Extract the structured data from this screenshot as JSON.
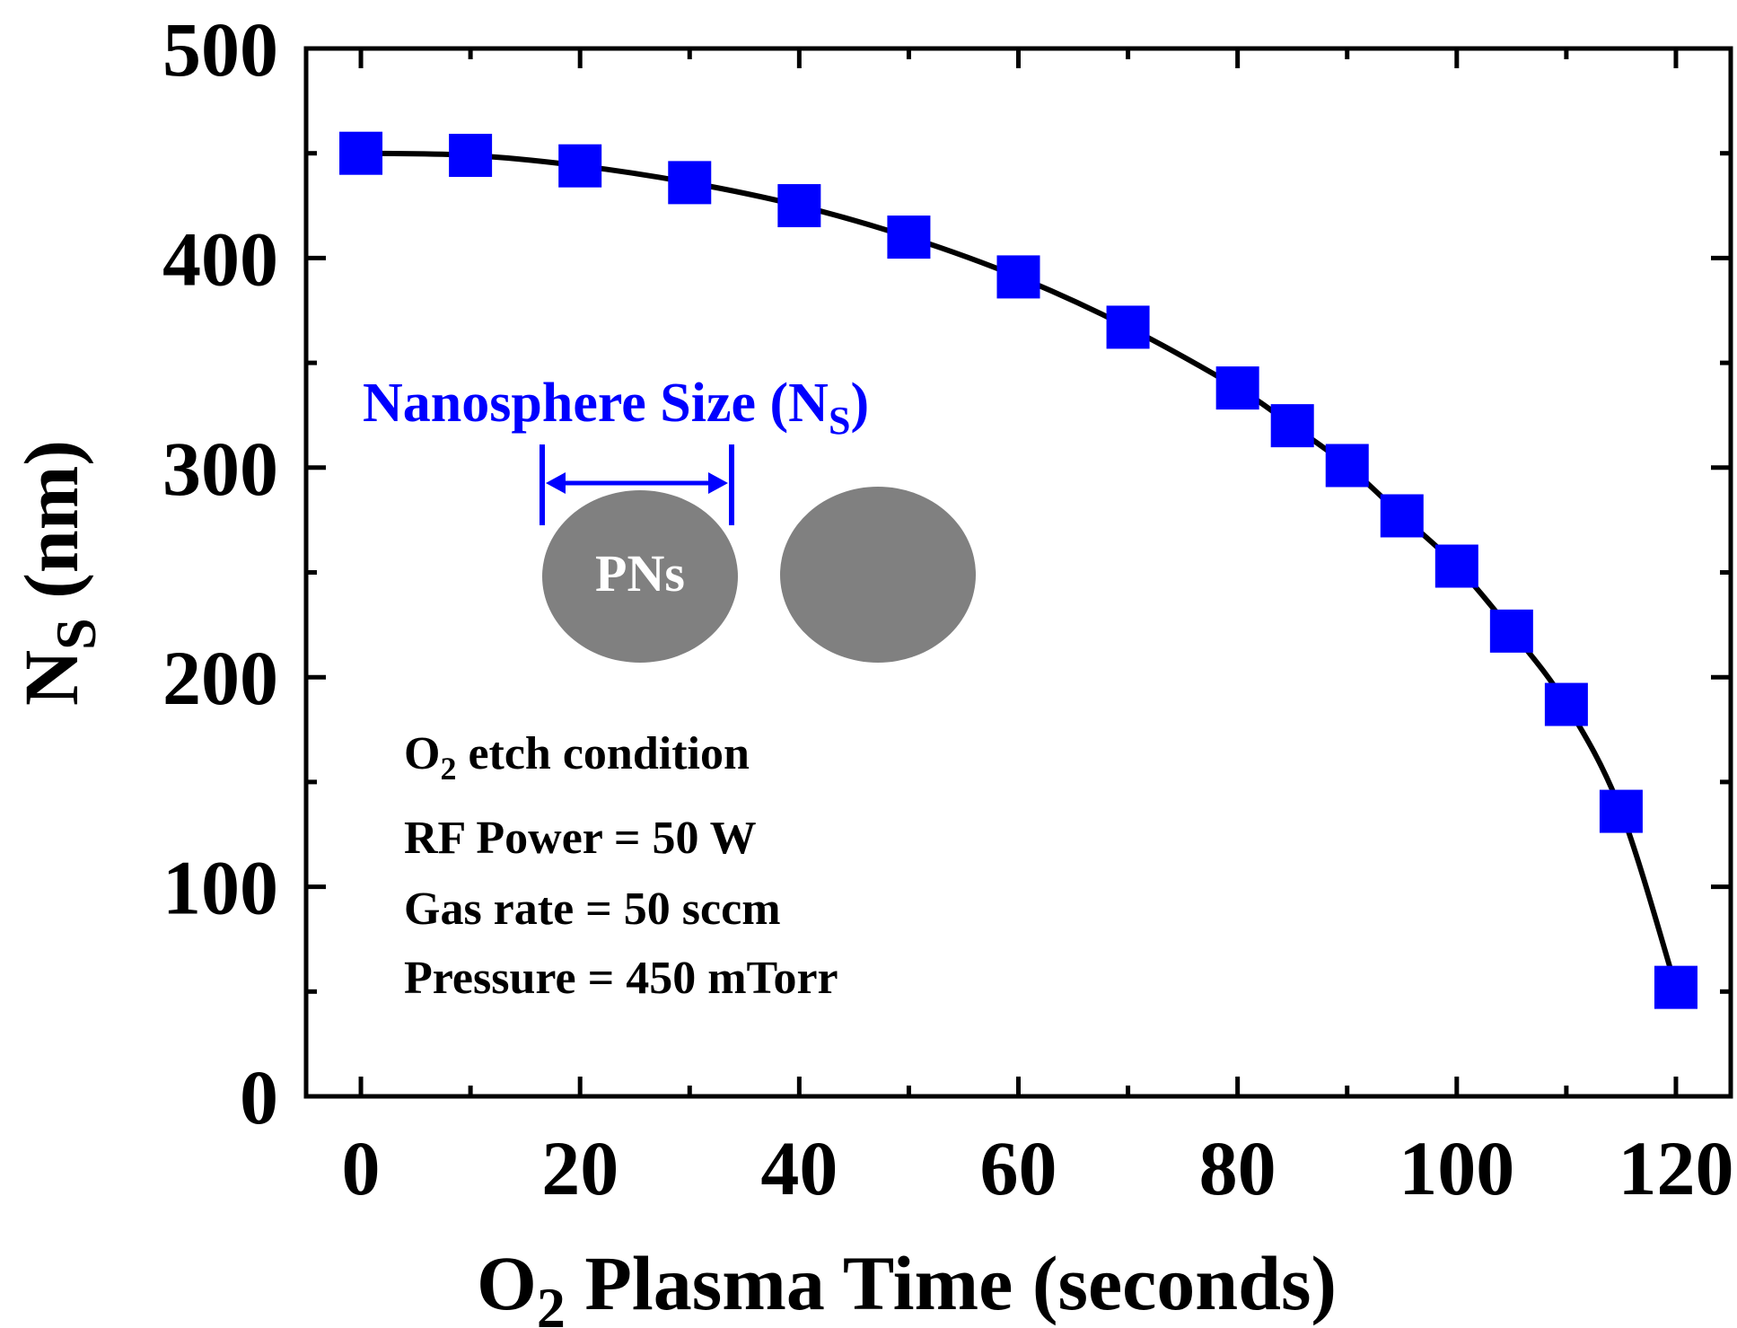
{
  "chart_data": {
    "type": "scatter",
    "title": "",
    "xlabel": {
      "main": "O",
      "sub": "2",
      "rest": " Plasma Time (seconds)"
    },
    "ylabel": {
      "main": "N",
      "sub": "S",
      "rest": " (nm)"
    },
    "xlim": [
      -5,
      125
    ],
    "ylim": [
      0,
      500
    ],
    "x_ticks": [
      0,
      20,
      40,
      60,
      80,
      100,
      120
    ],
    "y_ticks": [
      0,
      100,
      200,
      300,
      400,
      500
    ],
    "x_minor_ticks": [
      10,
      30,
      50,
      70,
      90,
      110
    ],
    "y_minor_ticks": [
      50,
      150,
      250,
      350,
      450
    ],
    "series": [
      {
        "name": "Nanosphere Size",
        "marker": "square",
        "color": "#0000ff",
        "x": [
          0,
          10,
          20,
          30,
          40,
          50,
          60,
          70,
          80,
          85,
          90,
          95,
          100,
          105,
          110,
          115,
          120
        ],
        "y": [
          450,
          449,
          444,
          436,
          425,
          410,
          391,
          367,
          338,
          320,
          301,
          277,
          253,
          222,
          187,
          136,
          52
        ]
      }
    ],
    "fit_curve": {
      "color": "#000000",
      "description": "smooth fit through data"
    },
    "annotations": {
      "inset_title": {
        "main": "Nanosphere Size (N",
        "sub": "S",
        "close": ")",
        "color": "#0000ff"
      },
      "sphere_label": "PNs",
      "sphere_color": "#808080",
      "arrow_color": "#0000ff",
      "conditions": {
        "line1": {
          "main": "O",
          "sub": "2",
          "rest": " etch condition"
        },
        "line2": "RF Power = 50 W",
        "line3": "Gas rate = 50 sccm",
        "line4": "Pressure = 450 mTorr"
      }
    }
  }
}
